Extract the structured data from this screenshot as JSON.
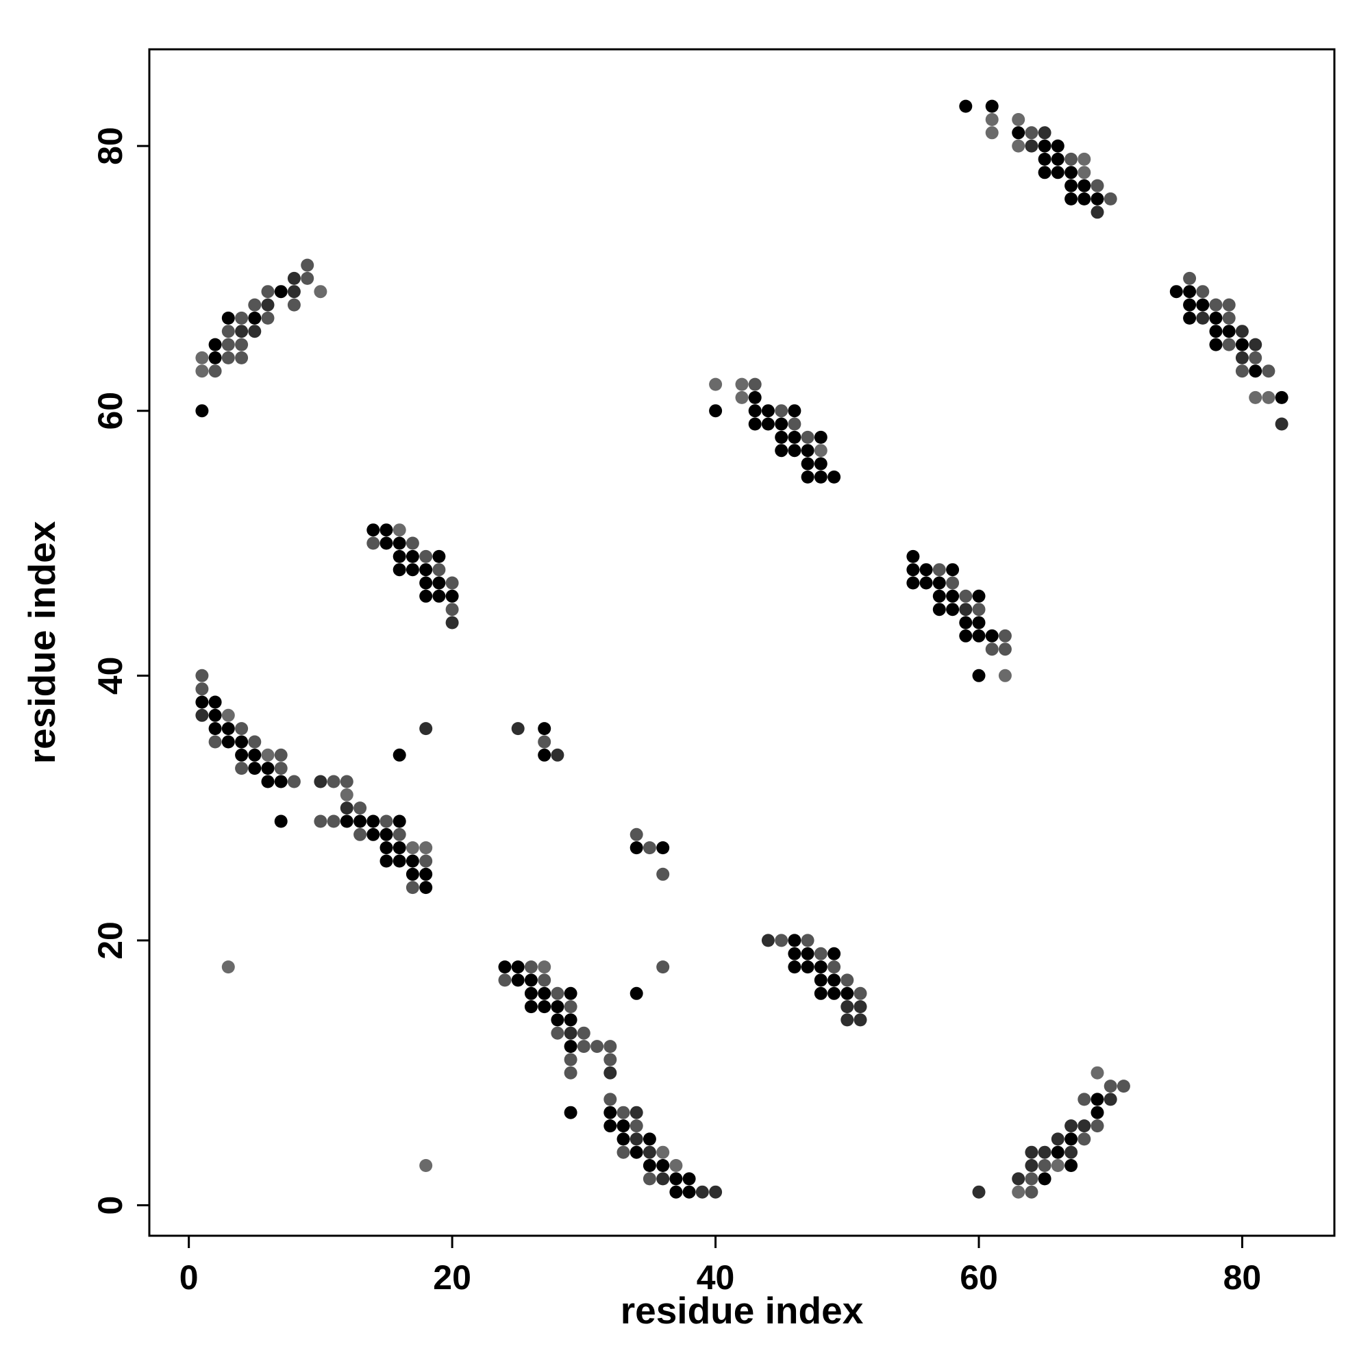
{
  "chart_data": {
    "type": "scatter",
    "xlabel": "residue index",
    "ylabel": "residue index",
    "xlim": [
      -3,
      87
    ],
    "ylim": [
      -2.3,
      87.3
    ],
    "xticks": [
      0,
      20,
      40,
      60,
      80
    ],
    "yticks": [
      0,
      20,
      40,
      60,
      80
    ],
    "grid": false,
    "colors": {
      "dark": "#000000",
      "mid": "#2e2e2e",
      "gray": "#555555",
      "light": "#6a6a6a"
    },
    "points": [
      [
        1,
        60,
        "dark"
      ],
      [
        1,
        63,
        "light"
      ],
      [
        1,
        64,
        "light"
      ],
      [
        2,
        63,
        "gray"
      ],
      [
        2,
        64,
        "dark"
      ],
      [
        2,
        65,
        "dark"
      ],
      [
        3,
        64,
        "gray"
      ],
      [
        3,
        65,
        "gray"
      ],
      [
        3,
        66,
        "gray"
      ],
      [
        3,
        67,
        "dark"
      ],
      [
        4,
        64,
        "gray"
      ],
      [
        4,
        65,
        "gray"
      ],
      [
        4,
        66,
        "mid"
      ],
      [
        4,
        67,
        "gray"
      ],
      [
        5,
        66,
        "mid"
      ],
      [
        5,
        67,
        "dark"
      ],
      [
        5,
        68,
        "gray"
      ],
      [
        6,
        67,
        "gray"
      ],
      [
        6,
        68,
        "mid"
      ],
      [
        6,
        69,
        "gray"
      ],
      [
        7,
        69,
        "dark"
      ],
      [
        8,
        68,
        "gray"
      ],
      [
        8,
        69,
        "mid"
      ],
      [
        8,
        70,
        "mid"
      ],
      [
        9,
        70,
        "gray"
      ],
      [
        9,
        71,
        "gray"
      ],
      [
        10,
        69,
        "light"
      ],
      [
        59,
        83,
        "dark"
      ],
      [
        61,
        81,
        "light"
      ],
      [
        61,
        82,
        "light"
      ],
      [
        61,
        83,
        "dark"
      ],
      [
        63,
        80,
        "light"
      ],
      [
        63,
        81,
        "dark"
      ],
      [
        63,
        82,
        "light"
      ],
      [
        64,
        80,
        "mid"
      ],
      [
        64,
        81,
        "gray"
      ],
      [
        65,
        78,
        "dark"
      ],
      [
        65,
        79,
        "dark"
      ],
      [
        65,
        80,
        "dark"
      ],
      [
        65,
        81,
        "mid"
      ],
      [
        66,
        78,
        "dark"
      ],
      [
        66,
        79,
        "dark"
      ],
      [
        66,
        80,
        "dark"
      ],
      [
        67,
        76,
        "dark"
      ],
      [
        67,
        77,
        "dark"
      ],
      [
        67,
        78,
        "dark"
      ],
      [
        67,
        79,
        "gray"
      ],
      [
        68,
        76,
        "dark"
      ],
      [
        68,
        77,
        "dark"
      ],
      [
        68,
        78,
        "light"
      ],
      [
        68,
        79,
        "light"
      ],
      [
        69,
        75,
        "mid"
      ],
      [
        69,
        76,
        "dark"
      ],
      [
        69,
        77,
        "gray"
      ],
      [
        70,
        76,
        "gray"
      ],
      [
        75,
        69,
        "dark"
      ],
      [
        76,
        67,
        "dark"
      ],
      [
        76,
        68,
        "dark"
      ],
      [
        76,
        69,
        "dark"
      ],
      [
        76,
        70,
        "gray"
      ],
      [
        77,
        67,
        "mid"
      ],
      [
        77,
        68,
        "dark"
      ],
      [
        77,
        69,
        "gray"
      ],
      [
        78,
        65,
        "dark"
      ],
      [
        78,
        66,
        "dark"
      ],
      [
        78,
        67,
        "dark"
      ],
      [
        78,
        68,
        "gray"
      ],
      [
        79,
        65,
        "gray"
      ],
      [
        79,
        66,
        "dark"
      ],
      [
        79,
        67,
        "gray"
      ],
      [
        79,
        68,
        "gray"
      ],
      [
        80,
        63,
        "gray"
      ],
      [
        80,
        64,
        "mid"
      ],
      [
        80,
        65,
        "dark"
      ],
      [
        80,
        66,
        "mid"
      ],
      [
        81,
        63,
        "dark"
      ],
      [
        81,
        64,
        "gray"
      ],
      [
        81,
        65,
        "mid"
      ],
      [
        81,
        61,
        "light"
      ],
      [
        82,
        61,
        "light"
      ],
      [
        82,
        63,
        "gray"
      ],
      [
        83,
        59,
        "mid"
      ],
      [
        83,
        61,
        "dark"
      ],
      [
        40,
        60,
        "dark"
      ],
      [
        40,
        62,
        "light"
      ],
      [
        42,
        61,
        "light"
      ],
      [
        42,
        62,
        "light"
      ],
      [
        43,
        59,
        "dark"
      ],
      [
        43,
        60,
        "dark"
      ],
      [
        43,
        61,
        "dark"
      ],
      [
        43,
        62,
        "gray"
      ],
      [
        44,
        59,
        "dark"
      ],
      [
        44,
        60,
        "dark"
      ],
      [
        45,
        57,
        "dark"
      ],
      [
        45,
        58,
        "dark"
      ],
      [
        45,
        59,
        "dark"
      ],
      [
        45,
        60,
        "gray"
      ],
      [
        46,
        57,
        "dark"
      ],
      [
        46,
        58,
        "dark"
      ],
      [
        46,
        59,
        "gray"
      ],
      [
        46,
        60,
        "dark"
      ],
      [
        47,
        55,
        "dark"
      ],
      [
        47,
        56,
        "dark"
      ],
      [
        47,
        57,
        "dark"
      ],
      [
        47,
        58,
        "gray"
      ],
      [
        48,
        55,
        "dark"
      ],
      [
        48,
        56,
        "dark"
      ],
      [
        48,
        57,
        "light"
      ],
      [
        48,
        58,
        "dark"
      ],
      [
        49,
        55,
        "dark"
      ],
      [
        14,
        50,
        "gray"
      ],
      [
        14,
        51,
        "dark"
      ],
      [
        15,
        50,
        "dark"
      ],
      [
        15,
        51,
        "dark"
      ],
      [
        16,
        48,
        "dark"
      ],
      [
        16,
        49,
        "dark"
      ],
      [
        16,
        50,
        "dark"
      ],
      [
        16,
        51,
        "light"
      ],
      [
        17,
        48,
        "dark"
      ],
      [
        17,
        49,
        "dark"
      ],
      [
        17,
        50,
        "gray"
      ],
      [
        18,
        46,
        "dark"
      ],
      [
        18,
        47,
        "dark"
      ],
      [
        18,
        48,
        "dark"
      ],
      [
        18,
        49,
        "gray"
      ],
      [
        19,
        46,
        "dark"
      ],
      [
        19,
        47,
        "dark"
      ],
      [
        19,
        48,
        "gray"
      ],
      [
        19,
        49,
        "dark"
      ],
      [
        20,
        44,
        "mid"
      ],
      [
        20,
        45,
        "gray"
      ],
      [
        20,
        46,
        "dark"
      ],
      [
        20,
        47,
        "gray"
      ],
      [
        55,
        47,
        "dark"
      ],
      [
        55,
        48,
        "dark"
      ],
      [
        55,
        49,
        "dark"
      ],
      [
        56,
        47,
        "dark"
      ],
      [
        56,
        48,
        "dark"
      ],
      [
        57,
        45,
        "dark"
      ],
      [
        57,
        46,
        "dark"
      ],
      [
        57,
        47,
        "dark"
      ],
      [
        57,
        48,
        "gray"
      ],
      [
        58,
        45,
        "dark"
      ],
      [
        58,
        46,
        "dark"
      ],
      [
        58,
        47,
        "gray"
      ],
      [
        58,
        48,
        "dark"
      ],
      [
        59,
        43,
        "dark"
      ],
      [
        59,
        44,
        "dark"
      ],
      [
        59,
        45,
        "mid"
      ],
      [
        59,
        46,
        "gray"
      ],
      [
        60,
        40,
        "dark"
      ],
      [
        60,
        43,
        "dark"
      ],
      [
        60,
        44,
        "dark"
      ],
      [
        60,
        45,
        "gray"
      ],
      [
        60,
        46,
        "dark"
      ],
      [
        61,
        42,
        "gray"
      ],
      [
        61,
        43,
        "dark"
      ],
      [
        62,
        40,
        "light"
      ],
      [
        62,
        42,
        "gray"
      ],
      [
        62,
        43,
        "gray"
      ],
      [
        1,
        37,
        "mid"
      ],
      [
        1,
        38,
        "dark"
      ],
      [
        1,
        39,
        "gray"
      ],
      [
        1,
        40,
        "gray"
      ],
      [
        2,
        35,
        "gray"
      ],
      [
        2,
        36,
        "dark"
      ],
      [
        2,
        37,
        "dark"
      ],
      [
        2,
        38,
        "dark"
      ],
      [
        3,
        35,
        "dark"
      ],
      [
        3,
        36,
        "dark"
      ],
      [
        3,
        37,
        "light"
      ],
      [
        4,
        33,
        "gray"
      ],
      [
        4,
        34,
        "dark"
      ],
      [
        4,
        35,
        "dark"
      ],
      [
        4,
        36,
        "gray"
      ],
      [
        5,
        33,
        "dark"
      ],
      [
        5,
        34,
        "dark"
      ],
      [
        5,
        35,
        "gray"
      ],
      [
        6,
        32,
        "dark"
      ],
      [
        6,
        33,
        "dark"
      ],
      [
        6,
        34,
        "light"
      ],
      [
        7,
        29,
        "dark"
      ],
      [
        7,
        32,
        "dark"
      ],
      [
        7,
        33,
        "gray"
      ],
      [
        7,
        34,
        "gray"
      ],
      [
        8,
        32,
        "gray"
      ],
      [
        10,
        29,
        "gray"
      ],
      [
        10,
        32,
        "mid"
      ],
      [
        11,
        29,
        "gray"
      ],
      [
        11,
        32,
        "gray"
      ],
      [
        12,
        29,
        "dark"
      ],
      [
        12,
        30,
        "mid"
      ],
      [
        12,
        31,
        "light"
      ],
      [
        12,
        32,
        "gray"
      ],
      [
        13,
        28,
        "gray"
      ],
      [
        13,
        29,
        "dark"
      ],
      [
        13,
        30,
        "gray"
      ],
      [
        14,
        28,
        "dark"
      ],
      [
        14,
        29,
        "dark"
      ],
      [
        15,
        26,
        "dark"
      ],
      [
        15,
        27,
        "dark"
      ],
      [
        15,
        28,
        "dark"
      ],
      [
        15,
        29,
        "gray"
      ],
      [
        16,
        26,
        "dark"
      ],
      [
        16,
        27,
        "dark"
      ],
      [
        16,
        28,
        "gray"
      ],
      [
        16,
        29,
        "dark"
      ],
      [
        16,
        34,
        "dark"
      ],
      [
        17,
        24,
        "gray"
      ],
      [
        17,
        25,
        "dark"
      ],
      [
        17,
        26,
        "dark"
      ],
      [
        17,
        27,
        "light"
      ],
      [
        18,
        3,
        "light"
      ],
      [
        18,
        24,
        "dark"
      ],
      [
        18,
        25,
        "dark"
      ],
      [
        18,
        26,
        "gray"
      ],
      [
        18,
        27,
        "light"
      ],
      [
        18,
        36,
        "mid"
      ],
      [
        3,
        18,
        "light"
      ],
      [
        25,
        36,
        "mid"
      ],
      [
        27,
        34,
        "dark"
      ],
      [
        27,
        35,
        "gray"
      ],
      [
        27,
        36,
        "dark"
      ],
      [
        28,
        34,
        "mid"
      ],
      [
        34,
        16,
        "dark"
      ],
      [
        34,
        27,
        "dark"
      ],
      [
        34,
        28,
        "gray"
      ],
      [
        35,
        27,
        "gray"
      ],
      [
        36,
        18,
        "gray"
      ],
      [
        36,
        25,
        "gray"
      ],
      [
        36,
        27,
        "dark"
      ],
      [
        24,
        17,
        "gray"
      ],
      [
        24,
        18,
        "dark"
      ],
      [
        25,
        17,
        "dark"
      ],
      [
        25,
        18,
        "dark"
      ],
      [
        26,
        15,
        "dark"
      ],
      [
        26,
        16,
        "dark"
      ],
      [
        26,
        17,
        "dark"
      ],
      [
        26,
        18,
        "gray"
      ],
      [
        27,
        15,
        "dark"
      ],
      [
        27,
        16,
        "dark"
      ],
      [
        27,
        17,
        "gray"
      ],
      [
        27,
        18,
        "light"
      ],
      [
        28,
        13,
        "gray"
      ],
      [
        28,
        14,
        "dark"
      ],
      [
        28,
        15,
        "dark"
      ],
      [
        28,
        16,
        "gray"
      ],
      [
        29,
        7,
        "dark"
      ],
      [
        29,
        10,
        "gray"
      ],
      [
        29,
        11,
        "gray"
      ],
      [
        29,
        12,
        "dark"
      ],
      [
        29,
        13,
        "mid"
      ],
      [
        29,
        14,
        "dark"
      ],
      [
        29,
        15,
        "gray"
      ],
      [
        29,
        16,
        "dark"
      ],
      [
        30,
        12,
        "gray"
      ],
      [
        30,
        13,
        "gray"
      ],
      [
        31,
        12,
        "gray"
      ],
      [
        32,
        6,
        "dark"
      ],
      [
        32,
        7,
        "dark"
      ],
      [
        32,
        8,
        "gray"
      ],
      [
        32,
        10,
        "mid"
      ],
      [
        32,
        11,
        "gray"
      ],
      [
        32,
        12,
        "gray"
      ],
      [
        33,
        4,
        "gray"
      ],
      [
        33,
        5,
        "dark"
      ],
      [
        33,
        6,
        "dark"
      ],
      [
        33,
        7,
        "gray"
      ],
      [
        34,
        4,
        "dark"
      ],
      [
        34,
        5,
        "mid"
      ],
      [
        34,
        6,
        "gray"
      ],
      [
        34,
        7,
        "mid"
      ],
      [
        35,
        2,
        "gray"
      ],
      [
        35,
        3,
        "dark"
      ],
      [
        35,
        4,
        "mid"
      ],
      [
        35,
        5,
        "dark"
      ],
      [
        36,
        2,
        "mid"
      ],
      [
        36,
        3,
        "dark"
      ],
      [
        36,
        4,
        "light"
      ],
      [
        37,
        1,
        "dark"
      ],
      [
        37,
        2,
        "dark"
      ],
      [
        37,
        3,
        "light"
      ],
      [
        38,
        1,
        "dark"
      ],
      [
        38,
        2,
        "dark"
      ],
      [
        39,
        1,
        "mid"
      ],
      [
        40,
        1,
        "mid"
      ],
      [
        44,
        20,
        "mid"
      ],
      [
        45,
        20,
        "gray"
      ],
      [
        46,
        18,
        "dark"
      ],
      [
        46,
        19,
        "dark"
      ],
      [
        46,
        20,
        "dark"
      ],
      [
        47,
        18,
        "dark"
      ],
      [
        47,
        19,
        "dark"
      ],
      [
        47,
        20,
        "gray"
      ],
      [
        48,
        16,
        "dark"
      ],
      [
        48,
        17,
        "dark"
      ],
      [
        48,
        18,
        "dark"
      ],
      [
        48,
        19,
        "gray"
      ],
      [
        49,
        16,
        "dark"
      ],
      [
        49,
        17,
        "dark"
      ],
      [
        49,
        18,
        "gray"
      ],
      [
        49,
        19,
        "dark"
      ],
      [
        50,
        14,
        "mid"
      ],
      [
        50,
        15,
        "mid"
      ],
      [
        50,
        16,
        "dark"
      ],
      [
        50,
        17,
        "gray"
      ],
      [
        51,
        14,
        "mid"
      ],
      [
        51,
        15,
        "mid"
      ],
      [
        51,
        16,
        "gray"
      ],
      [
        60,
        1,
        "mid"
      ],
      [
        63,
        1,
        "light"
      ],
      [
        63,
        2,
        "mid"
      ],
      [
        64,
        1,
        "gray"
      ],
      [
        64,
        2,
        "gray"
      ],
      [
        64,
        3,
        "mid"
      ],
      [
        64,
        4,
        "mid"
      ],
      [
        65,
        2,
        "dark"
      ],
      [
        65,
        3,
        "gray"
      ],
      [
        65,
        4,
        "mid"
      ],
      [
        66,
        3,
        "light"
      ],
      [
        66,
        4,
        "dark"
      ],
      [
        66,
        5,
        "mid"
      ],
      [
        67,
        3,
        "dark"
      ],
      [
        67,
        4,
        "mid"
      ],
      [
        67,
        5,
        "dark"
      ],
      [
        67,
        6,
        "mid"
      ],
      [
        68,
        5,
        "gray"
      ],
      [
        68,
        6,
        "mid"
      ],
      [
        68,
        8,
        "gray"
      ],
      [
        69,
        6,
        "gray"
      ],
      [
        69,
        7,
        "dark"
      ],
      [
        69,
        8,
        "dark"
      ],
      [
        69,
        10,
        "light"
      ],
      [
        70,
        8,
        "mid"
      ],
      [
        70,
        9,
        "gray"
      ],
      [
        71,
        9,
        "gray"
      ]
    ]
  }
}
